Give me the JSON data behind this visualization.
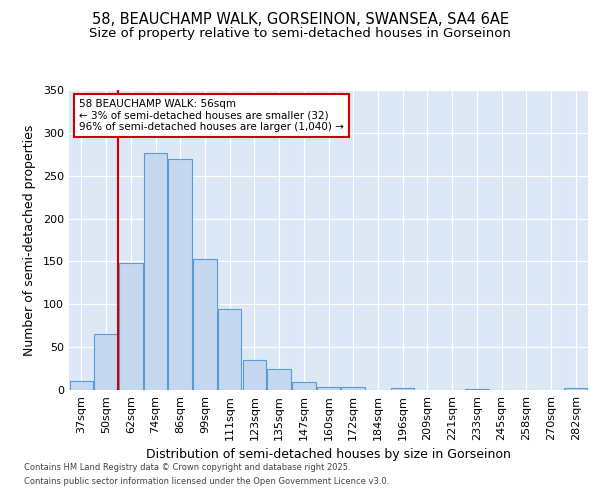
{
  "title_line1": "58, BEAUCHAMP WALK, GORSEINON, SWANSEA, SA4 6AE",
  "title_line2": "Size of property relative to semi-detached houses in Gorseinon",
  "xlabel": "Distribution of semi-detached houses by size in Gorseinon",
  "ylabel": "Number of semi-detached properties",
  "categories": [
    "37sqm",
    "50sqm",
    "62sqm",
    "74sqm",
    "86sqm",
    "99sqm",
    "111sqm",
    "123sqm",
    "135sqm",
    "147sqm",
    "160sqm",
    "172sqm",
    "184sqm",
    "196sqm",
    "209sqm",
    "221sqm",
    "233sqm",
    "245sqm",
    "258sqm",
    "270sqm",
    "282sqm"
  ],
  "values": [
    10,
    65,
    148,
    277,
    270,
    153,
    95,
    35,
    25,
    9,
    4,
    3,
    0,
    2,
    0,
    0,
    1,
    0,
    0,
    0,
    2
  ],
  "bar_color": "#c5d8f0",
  "bar_edge_color": "#5b9bd5",
  "vline_color": "#cc0000",
  "annotation_text": "58 BEAUCHAMP WALK: 56sqm\n← 3% of semi-detached houses are smaller (32)\n96% of semi-detached houses are larger (1,040) →",
  "annotation_box_color": "#ffffff",
  "annotation_box_edge_color": "#cc0000",
  "ylim": [
    0,
    350
  ],
  "yticks": [
    0,
    50,
    100,
    150,
    200,
    250,
    300,
    350
  ],
  "background_color": "#dce8f5",
  "footer_line1": "Contains HM Land Registry data © Crown copyright and database right 2025.",
  "footer_line2": "Contains public sector information licensed under the Open Government Licence v3.0.",
  "title_fontsize": 10.5,
  "subtitle_fontsize": 9.5,
  "tick_fontsize": 8,
  "axis_label_fontsize": 9
}
